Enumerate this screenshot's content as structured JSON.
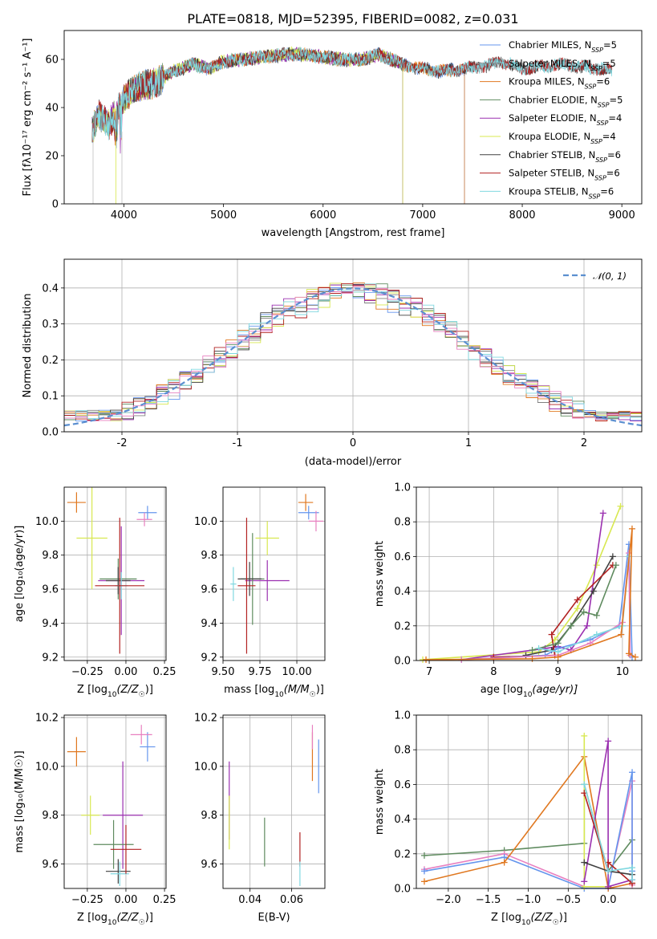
{
  "chart_data": [
    {
      "id": "spectrum",
      "type": "line",
      "title": "PLATE=0818, MJD=52395, FIBERID=0082, z=0.031",
      "xlabel": "wavelength [Angstrom, rest frame]",
      "ylabel": "Flux [fλ10⁻¹⁷ erg cm⁻² s⁻¹ A⁻¹]",
      "xlim": [
        3400,
        9200
      ],
      "ylim": [
        0,
        72
      ],
      "xticks": [
        4000,
        5000,
        6000,
        7000,
        8000,
        9000
      ],
      "yticks": [
        0,
        20,
        40,
        60
      ],
      "grid": false,
      "legend_position": "top-right",
      "spectrum_anchor_points": {
        "x": [
          3680,
          3750,
          3850,
          3950,
          4000,
          4100,
          4300,
          4500,
          4700,
          4860,
          5000,
          5200,
          5400,
          5600,
          5800,
          6000,
          6200,
          6400,
          6563,
          6800,
          7000,
          7200,
          7400,
          7600,
          7800,
          8000,
          8200,
          8400,
          8600,
          8800,
          8900
        ],
        "y": [
          30,
          37,
          33,
          40,
          43,
          48,
          50,
          55,
          58,
          56,
          59,
          60,
          61,
          62,
          62,
          61,
          60,
          60,
          62,
          58,
          56,
          55,
          56,
          57,
          59,
          56,
          57,
          58,
          57,
          56,
          55
        ]
      },
      "series": [
        {
          "name": "Chabrier MILES, N",
          "sub": "SSP",
          "suffix": "=5",
          "color": "#6495ED",
          "xmax": 7420
        },
        {
          "name": "Salpeter MILES, N",
          "sub": "SSP",
          "suffix": "=5",
          "color": "#808080",
          "xmax": 8900
        },
        {
          "name": "Kroupa MILES, N",
          "sub": "SSP",
          "suffix": "=6",
          "color": "#E07820",
          "xmax": 7420
        },
        {
          "name": "Chabrier ELODIE, N",
          "sub": "SSP",
          "suffix": "=5",
          "color": "#5F8B5F",
          "xmax": 6800
        },
        {
          "name": "Salpeter ELODIE, N",
          "sub": "SSP",
          "suffix": "=4",
          "color": "#9B30B0",
          "xmax": 6800
        },
        {
          "name": "Kroupa ELODIE, N",
          "sub": "SSP",
          "suffix": "=4",
          "color": "#D8E850",
          "xmax": 6800
        },
        {
          "name": "Chabrier STELIB, N",
          "sub": "SSP",
          "suffix": "=6",
          "color": "#404040",
          "xmax": 8900
        },
        {
          "name": "Salpeter STELIB, N",
          "sub": "SSP",
          "suffix": "=6",
          "color": "#B22222",
          "xmax": 8900
        },
        {
          "name": "Kroupa STELIB, N",
          "sub": "SSP",
          "suffix": "=6",
          "color": "#80D8E0",
          "xmax": 8900
        }
      ]
    },
    {
      "id": "residuals",
      "type": "histogram",
      "xlabel": "(data-model)/error",
      "ylabel": "Normed distribution",
      "xlim": [
        -2.5,
        2.5
      ],
      "ylim": [
        0,
        0.48
      ],
      "xticks": [
        -2,
        -1,
        0,
        1,
        2
      ],
      "yticks": [
        0.0,
        0.1,
        0.2,
        0.3,
        0.4
      ],
      "grid": true,
      "legend_position": "top-right",
      "reference_curve": {
        "name": "𝒩(0, 1)",
        "color": "#5B8FD0",
        "mean": 0,
        "sigma": 1
      },
      "bin_width": 0.1
    },
    {
      "id": "age-vs-Z",
      "type": "errorbar",
      "xlabel_main": "Z [log",
      "xlabel_sub": "10",
      "xlabel_rest": "(Z/Z",
      "xlabel_end": ")]",
      "ylabel": "age  [log₁₀(age/yr)]",
      "xlim": [
        -0.4,
        0.26
      ],
      "ylim": [
        9.18,
        10.2
      ],
      "xticks": [
        -0.25,
        0.0,
        0.25
      ],
      "xtick_labels": [
        "−0.25",
        "0.00",
        "0.25"
      ],
      "yticks": [
        9.2,
        9.4,
        9.6,
        9.8,
        10.0
      ],
      "grid": true,
      "points": [
        {
          "x": -0.32,
          "y": 10.11,
          "xerr": 0.06,
          "yerr": 0.06,
          "color": "#E07820"
        },
        {
          "x": 0.14,
          "y": 10.05,
          "xerr": 0.06,
          "yerr": 0.04,
          "color": "#6495ED"
        },
        {
          "x": 0.12,
          "y": 10.01,
          "xerr": 0.05,
          "yerr": 0.04,
          "color": "#E880C0"
        },
        {
          "x": -0.22,
          "y": 9.9,
          "xerr": 0.1,
          "yerr": 0.3,
          "color": "#D8E850"
        },
        {
          "x": -0.03,
          "y": 9.65,
          "xerr": 0.15,
          "yerr": 0.32,
          "color": "#9B30B0"
        },
        {
          "x": -0.05,
          "y": 9.66,
          "xerr": 0.12,
          "yerr": 0.12,
          "color": "#5F8B5F"
        },
        {
          "x": -0.05,
          "y": 9.65,
          "xerr": 0.08,
          "yerr": 0.08,
          "color": "#404040"
        },
        {
          "x": -0.03,
          "y": 9.62,
          "xerr": 0.04,
          "yerr": 0.08,
          "color": "#80D8E0"
        },
        {
          "x": -0.04,
          "y": 9.62,
          "xerr": 0.16,
          "yerr": 0.4,
          "color": "#B22222"
        }
      ]
    },
    {
      "id": "age-vs-mass",
      "type": "errorbar",
      "xlabel_main": "mass [log",
      "xlabel_sub": "10",
      "xlabel_rest": "(M/M",
      "xlabel_end": ")]",
      "ylabel": "",
      "xlim": [
        9.5,
        10.19
      ],
      "ylim": [
        9.18,
        10.2
      ],
      "xticks": [
        9.5,
        9.75,
        10.0
      ],
      "xtick_labels": [
        "9.50",
        "9.75",
        "10.00"
      ],
      "yticks": [
        9.2,
        9.4,
        9.6,
        9.8,
        10.0
      ],
      "grid": true,
      "points": [
        {
          "x": 10.06,
          "y": 10.11,
          "xerr": 0.05,
          "yerr": 0.05,
          "color": "#E07820"
        },
        {
          "x": 10.08,
          "y": 10.05,
          "xerr": 0.07,
          "yerr": 0.04,
          "color": "#6495ED"
        },
        {
          "x": 10.13,
          "y": 10.0,
          "xerr": 0.05,
          "yerr": 0.06,
          "color": "#E880C0"
        },
        {
          "x": 9.8,
          "y": 9.9,
          "xerr": 0.08,
          "yerr": 0.1,
          "color": "#D8E850"
        },
        {
          "x": 9.8,
          "y": 9.65,
          "xerr": 0.15,
          "yerr": 0.12,
          "color": "#9B30B0"
        },
        {
          "x": 9.7,
          "y": 9.66,
          "xerr": 0.08,
          "yerr": 0.27,
          "color": "#5F8B5F"
        },
        {
          "x": 9.68,
          "y": 9.66,
          "xerr": 0.08,
          "yerr": 0.1,
          "color": "#404040"
        },
        {
          "x": 9.57,
          "y": 9.63,
          "xerr": 0.02,
          "yerr": 0.1,
          "color": "#80D8E0"
        },
        {
          "x": 9.66,
          "y": 9.62,
          "xerr": 0.06,
          "yerr": 0.4,
          "color": "#B22222"
        }
      ]
    },
    {
      "id": "weight-vs-age",
      "type": "line",
      "xlabel_main": "age  [log",
      "xlabel_sub": "10",
      "xlabel_rest": "(age/yr)]",
      "ylabel": "mass weight",
      "xlim": [
        6.8,
        10.3
      ],
      "ylim": [
        0,
        1.0
      ],
      "xticks": [
        7,
        8,
        9,
        10
      ],
      "yticks": [
        0.0,
        0.2,
        0.4,
        0.6,
        0.8,
        1.0
      ],
      "ytick_labels": [
        "0.0",
        "0.2",
        "0.4",
        "0.6",
        "0.8",
        "1.0"
      ],
      "grid": true,
      "series": [
        {
          "color": "#D8E850",
          "x": [
            6.9,
            8.7,
            8.95,
            9.3,
            9.6,
            9.97
          ],
          "y": [
            0.005,
            0.05,
            0.12,
            0.3,
            0.55,
            0.89
          ]
        },
        {
          "color": "#9B30B0",
          "x": [
            7.5,
            8.8,
            9.0,
            9.2,
            9.45,
            9.7
          ],
          "y": [
            0.005,
            0.07,
            0.08,
            0.06,
            0.2,
            0.85
          ]
        },
        {
          "color": "#404040",
          "x": [
            8.5,
            8.9,
            9.2,
            9.55,
            9.85
          ],
          "y": [
            0.03,
            0.06,
            0.2,
            0.4,
            0.6
          ]
        },
        {
          "color": "#B22222",
          "x": [
            8.0,
            8.95,
            8.9,
            9.3,
            9.85
          ],
          "y": [
            0.02,
            0.03,
            0.15,
            0.35,
            0.55
          ]
        },
        {
          "color": "#5F8B5F",
          "x": [
            8.6,
            9.0,
            9.2,
            9.4,
            9.6,
            9.9
          ],
          "y": [
            0.06,
            0.1,
            0.2,
            0.28,
            0.26,
            0.55
          ]
        },
        {
          "color": "#6495ED",
          "x": [
            7.5,
            8.8,
            9.0,
            9.5,
            9.95,
            10.1,
            10.15
          ],
          "y": [
            0.005,
            0.03,
            0.07,
            0.12,
            0.2,
            0.67,
            0.02
          ]
        },
        {
          "color": "#E880C0",
          "x": [
            7.5,
            9.0,
            9.5,
            10.0,
            10.1,
            10.12
          ],
          "y": [
            0.005,
            0.03,
            0.1,
            0.22,
            0.62,
            0.03
          ]
        },
        {
          "color": "#80D8E0",
          "x": [
            8.7,
            9.0,
            9.6,
            10.0,
            10.1
          ],
          "y": [
            0.07,
            0.05,
            0.15,
            0.2,
            0.6
          ]
        },
        {
          "color": "#E07820",
          "x": [
            6.95,
            8.6,
            9.0,
            9.98,
            10.15,
            10.1,
            10.2
          ],
          "y": [
            0.005,
            0.01,
            0.02,
            0.15,
            0.76,
            0.04,
            0.02
          ]
        }
      ]
    },
    {
      "id": "mass-vs-Z",
      "type": "errorbar",
      "xlabel_main": "Z [log",
      "xlabel_sub": "10",
      "xlabel_rest": "(Z/Z",
      "xlabel_end": ")]",
      "ylabel": "mass [log₁₀(M/M☉)]",
      "xlim": [
        -0.4,
        0.26
      ],
      "ylim": [
        9.5,
        10.21
      ],
      "xticks": [
        -0.25,
        0.0,
        0.25
      ],
      "xtick_labels": [
        "−0.25",
        "0.00",
        "0.25"
      ],
      "yticks": [
        9.6,
        9.8,
        10.0,
        10.2
      ],
      "grid": true,
      "points": [
        {
          "x": -0.32,
          "y": 10.06,
          "xerr": 0.06,
          "yerr": 0.06,
          "color": "#E07820"
        },
        {
          "x": 0.14,
          "y": 10.08,
          "xerr": 0.05,
          "yerr": 0.06,
          "color": "#6495ED"
        },
        {
          "x": 0.1,
          "y": 10.13,
          "xerr": 0.07,
          "yerr": 0.04,
          "color": "#E880C0"
        },
        {
          "x": -0.23,
          "y": 9.8,
          "xerr": 0.06,
          "yerr": 0.08,
          "color": "#D8E850"
        },
        {
          "x": -0.02,
          "y": 9.8,
          "xerr": 0.13,
          "yerr": 0.22,
          "color": "#9B30B0"
        },
        {
          "x": -0.08,
          "y": 9.68,
          "xerr": 0.13,
          "yerr": 0.1,
          "color": "#5F8B5F"
        },
        {
          "x": -0.05,
          "y": 9.57,
          "xerr": 0.08,
          "yerr": 0.05,
          "color": "#404040"
        },
        {
          "x": -0.04,
          "y": 9.56,
          "xerr": 0.06,
          "yerr": 0.05,
          "color": "#80D8E0"
        },
        {
          "x": 0.0,
          "y": 9.66,
          "xerr": 0.1,
          "yerr": 0.1,
          "color": "#B22222"
        }
      ]
    },
    {
      "id": "mass-vs-ebv",
      "type": "errorbar",
      "xlabel": "E(B-V)",
      "ylabel": "",
      "xlim": [
        0.027,
        0.076
      ],
      "ylim": [
        9.5,
        10.21
      ],
      "xticks": [
        0.04,
        0.06
      ],
      "xtick_labels": [
        "0.04",
        "0.06"
      ],
      "yticks": [
        9.6,
        9.8,
        10.0,
        10.2
      ],
      "grid": true,
      "points": [
        {
          "x": 0.03,
          "y": 9.86,
          "xerr": 0,
          "yerr": 0.16,
          "color": "#9B30B0"
        },
        {
          "x": 0.03,
          "y": 9.77,
          "xerr": 0,
          "yerr": 0.11,
          "color": "#D8E850"
        },
        {
          "x": 0.047,
          "y": 9.69,
          "xerr": 0,
          "yerr": 0.1,
          "color": "#5F8B5F"
        },
        {
          "x": 0.064,
          "y": 9.66,
          "xerr": 0,
          "yerr": 0.07,
          "color": "#B22222"
        },
        {
          "x": 0.064,
          "y": 9.56,
          "xerr": 0,
          "yerr": 0.05,
          "color": "#80D8E0"
        },
        {
          "x": 0.07,
          "y": 10.04,
          "xerr": 0,
          "yerr": 0.1,
          "color": "#E07820"
        },
        {
          "x": 0.07,
          "y": 10.12,
          "xerr": 0,
          "yerr": 0.05,
          "color": "#E880C0"
        },
        {
          "x": 0.073,
          "y": 10.0,
          "xerr": 0,
          "yerr": 0.11,
          "color": "#6495ED"
        }
      ]
    },
    {
      "id": "weight-vs-Z",
      "type": "line",
      "xlabel_main": "Z [log",
      "xlabel_sub": "10",
      "xlabel_rest": "(Z/Z",
      "xlabel_end": ")]",
      "ylabel": "mass weight",
      "xlim": [
        -2.4,
        0.42
      ],
      "ylim": [
        0,
        1.0
      ],
      "xticks": [
        -2.0,
        -1.5,
        -1.0,
        -0.5,
        0.0
      ],
      "xtick_labels": [
        "−2.0",
        "−1.5",
        "−1.0",
        "−0.5",
        "0.0"
      ],
      "yticks": [
        0.0,
        0.2,
        0.4,
        0.6,
        0.8,
        1.0
      ],
      "ytick_labels": [
        "0.0",
        "0.2",
        "0.4",
        "0.6",
        "0.8",
        "1.0"
      ],
      "grid": true,
      "series": [
        {
          "color": "#5F8B5F",
          "x": [
            -2.3,
            -1.3,
            -0.3,
            -0.3,
            0.0,
            0.3
          ],
          "y": [
            0.19,
            0.22,
            0.26,
            0.6,
            0.1,
            0.28
          ]
        },
        {
          "color": "#E880C0",
          "x": [
            -2.3,
            -1.3,
            -0.3,
            0.0,
            0.3,
            0.3
          ],
          "y": [
            0.11,
            0.2,
            0.01,
            0.01,
            0.62,
            0.02
          ]
        },
        {
          "color": "#6495ED",
          "x": [
            -2.3,
            -1.3,
            -0.3,
            0.0,
            0.3,
            0.3
          ],
          "y": [
            0.1,
            0.18,
            0.0,
            0.0,
            0.67,
            0.1
          ]
        },
        {
          "color": "#E07820",
          "x": [
            -2.3,
            -1.3,
            -0.3,
            0.0,
            0.3
          ],
          "y": [
            0.04,
            0.15,
            0.76,
            0.0,
            0.03
          ]
        },
        {
          "color": "#D8E850",
          "x": [
            -0.3,
            -0.3,
            0.0
          ],
          "y": [
            0.88,
            0.01,
            0.01
          ]
        },
        {
          "color": "#9B30B0",
          "x": [
            -0.3,
            0.0,
            0.0,
            0.3
          ],
          "y": [
            0.04,
            0.85,
            0.01,
            0.05
          ]
        },
        {
          "color": "#B22222",
          "x": [
            -0.3,
            0.0,
            0.0,
            0.3
          ],
          "y": [
            0.55,
            0.1,
            0.15,
            0.03
          ]
        },
        {
          "color": "#404040",
          "x": [
            -0.3,
            0.0,
            0.3
          ],
          "y": [
            0.15,
            0.1,
            0.08
          ]
        },
        {
          "color": "#80D8E0",
          "x": [
            -0.3,
            0.0,
            0.3,
            0.3
          ],
          "y": [
            0.6,
            0.1,
            0.12,
            0.05
          ]
        }
      ]
    }
  ]
}
